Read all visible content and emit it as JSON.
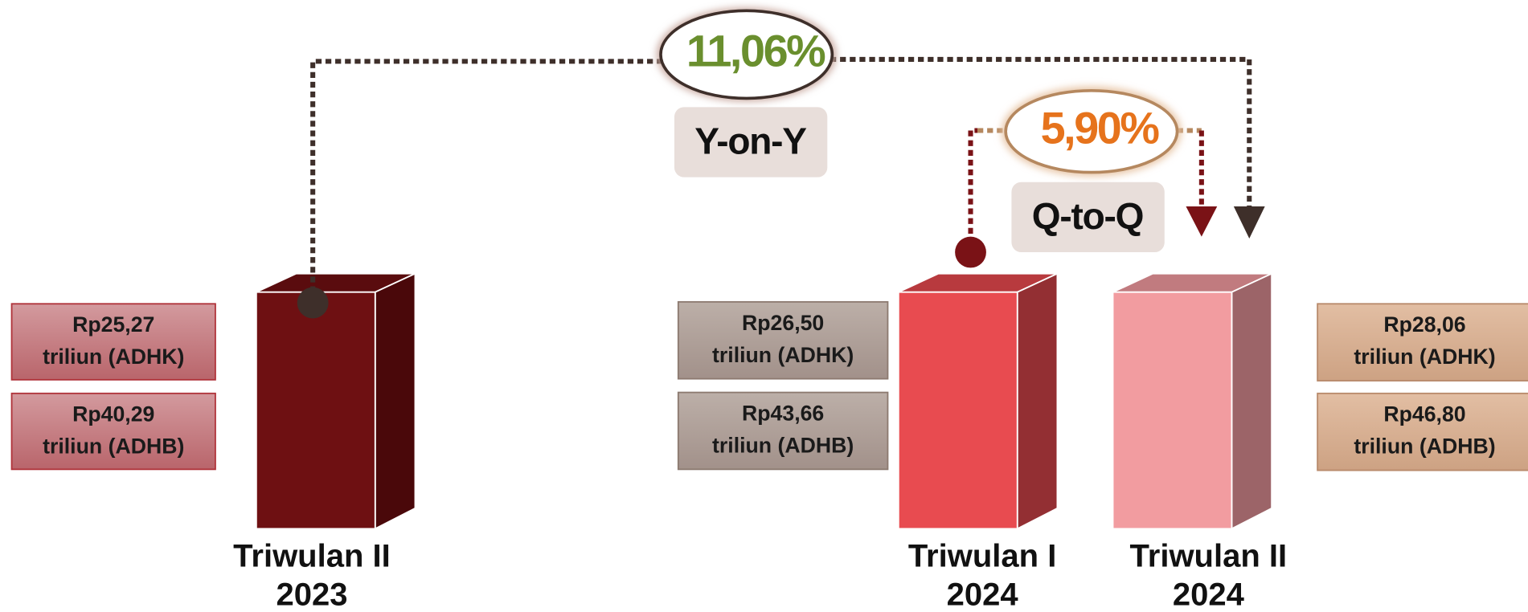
{
  "growth": {
    "yoy": {
      "value": "11,06%",
      "label": "Y-on-Y"
    },
    "qtq": {
      "value": "5,90%",
      "label": "Q-to-Q"
    }
  },
  "periods": [
    {
      "name": [
        "Triwulan II",
        "2023"
      ],
      "adhk": [
        "Rp25,27",
        "triliun (ADHK)"
      ],
      "adhb": [
        "Rp40,29",
        "triliun (ADHB)"
      ]
    },
    {
      "name": [
        "Triwulan I",
        "2024"
      ],
      "adhk": [
        "Rp26,50",
        "triliun (ADHK)"
      ],
      "adhb": [
        "Rp43,66",
        "triliun (ADHB)"
      ]
    },
    {
      "name": [
        "Triwulan II",
        "2024"
      ],
      "adhk": [
        "Rp28,06",
        "triliun (ADHK)"
      ],
      "adhb": [
        "Rp46,80",
        "triliun (ADHB)"
      ]
    }
  ]
}
